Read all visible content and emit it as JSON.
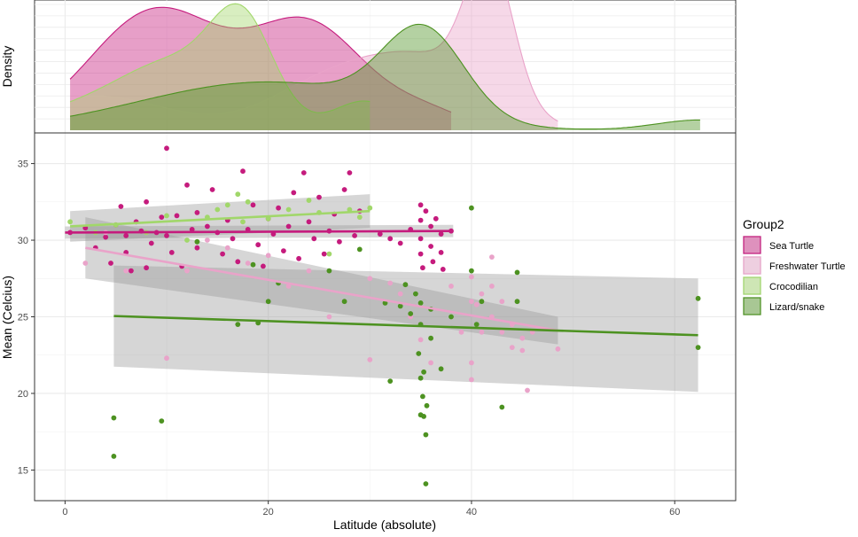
{
  "chart_data": {
    "type": "scatter",
    "xlabel": "Latitude (absolute)",
    "ylabel": "Mean (Celcius)",
    "density_ylabel": "Density",
    "xlim": [
      -3,
      66
    ],
    "ylim": [
      13,
      37
    ],
    "x_ticks": [
      0,
      20,
      40,
      60
    ],
    "y_ticks": [
      15,
      20,
      25,
      30,
      35
    ],
    "density_max": 1.1,
    "grid": true,
    "legend_position": "right",
    "legend": {
      "title": "Group2",
      "entries": [
        "Sea Turtle",
        "Freshwater Turtle",
        "Crocodilian",
        "Lizard/snake"
      ]
    },
    "colors": {
      "Sea Turtle": "#c51b7d",
      "Freshwater Turtle": "#e9a3c9",
      "Crocodilian": "#a1d76a",
      "Lizard/snake": "#4d9221"
    },
    "series": [
      {
        "name": "Sea Turtle",
        "points": [
          [
            0.5,
            30.5
          ],
          [
            2,
            30.8
          ],
          [
            3,
            29.5
          ],
          [
            4,
            30.2
          ],
          [
            4.5,
            28.5
          ],
          [
            5,
            31
          ],
          [
            5.5,
            32.2
          ],
          [
            6,
            30.3
          ],
          [
            6,
            29.2
          ],
          [
            6.5,
            28
          ],
          [
            7,
            31.2
          ],
          [
            7.5,
            30.6
          ],
          [
            8,
            32.5
          ],
          [
            8,
            28.2
          ],
          [
            8.5,
            29.8
          ],
          [
            9,
            30.5
          ],
          [
            9.5,
            31.5
          ],
          [
            10,
            36
          ],
          [
            10,
            30.3
          ],
          [
            10.5,
            29.2
          ],
          [
            11,
            31.6
          ],
          [
            11.5,
            28.3
          ],
          [
            12,
            33.6
          ],
          [
            12.5,
            30.7
          ],
          [
            13,
            31.8
          ],
          [
            13,
            29.5
          ],
          [
            14,
            30.9
          ],
          [
            14.5,
            33.3
          ],
          [
            15,
            30.5
          ],
          [
            15.5,
            29.1
          ],
          [
            16,
            31.3
          ],
          [
            16.5,
            30.1
          ],
          [
            17,
            28.6
          ],
          [
            17.5,
            34.5
          ],
          [
            18,
            30.7
          ],
          [
            18.5,
            32.3
          ],
          [
            19,
            29.7
          ],
          [
            19.5,
            28.3
          ],
          [
            20,
            31.4
          ],
          [
            20.5,
            30.4
          ],
          [
            21,
            32.1
          ],
          [
            21.5,
            29.3
          ],
          [
            22,
            30.9
          ],
          [
            22.5,
            33.1
          ],
          [
            23,
            28.8
          ],
          [
            23.5,
            34.4
          ],
          [
            24,
            31.2
          ],
          [
            24.5,
            30.1
          ],
          [
            25,
            32.8
          ],
          [
            25.5,
            29.1
          ],
          [
            26,
            30.6
          ],
          [
            26.5,
            31.7
          ],
          [
            27,
            29.9
          ],
          [
            27.5,
            33.3
          ],
          [
            28,
            34.4
          ],
          [
            28.5,
            30.3
          ],
          [
            29,
            31.9
          ],
          [
            31,
            30.4
          ],
          [
            32,
            30.1
          ],
          [
            33,
            29.8
          ],
          [
            34,
            30.7
          ],
          [
            35,
            32.3
          ],
          [
            35,
            31.3
          ],
          [
            35,
            30.1
          ],
          [
            35,
            29.1
          ],
          [
            35.2,
            28.2
          ],
          [
            35.5,
            31.9
          ],
          [
            36,
            30.9
          ],
          [
            36,
            29.6
          ],
          [
            36.2,
            28.6
          ],
          [
            36.5,
            31.4
          ],
          [
            37,
            30.4
          ],
          [
            37,
            29.2
          ],
          [
            37.2,
            28.1
          ],
          [
            38,
            30.6
          ]
        ]
      },
      {
        "name": "Freshwater Turtle",
        "points": [
          [
            2,
            28.5
          ],
          [
            4,
            30.5
          ],
          [
            6,
            28
          ],
          [
            8,
            30.5
          ],
          [
            10,
            22.3
          ],
          [
            12,
            28
          ],
          [
            14,
            30
          ],
          [
            16,
            29.5
          ],
          [
            18,
            28.5
          ],
          [
            20,
            29
          ],
          [
            22,
            27
          ],
          [
            24,
            28
          ],
          [
            26,
            25
          ],
          [
            30,
            22.2
          ],
          [
            30,
            27.5
          ],
          [
            32,
            27.2
          ],
          [
            33,
            26.5
          ],
          [
            34,
            25
          ],
          [
            35,
            23.5
          ],
          [
            35,
            24.5
          ],
          [
            36,
            22
          ],
          [
            38,
            27
          ],
          [
            39,
            24
          ],
          [
            40,
            22
          ],
          [
            40,
            26
          ],
          [
            40,
            27.6
          ],
          [
            40,
            20.9
          ],
          [
            40.5,
            25.8
          ],
          [
            41,
            26.5
          ],
          [
            41,
            24
          ],
          [
            42,
            28.9
          ],
          [
            42,
            27
          ],
          [
            42,
            25
          ],
          [
            43,
            24
          ],
          [
            43,
            26
          ],
          [
            44,
            24.5
          ],
          [
            44,
            23
          ],
          [
            45,
            23.6
          ],
          [
            45,
            22.8
          ],
          [
            45.5,
            20.2
          ],
          [
            46,
            24
          ],
          [
            48.5,
            22.9
          ]
        ]
      },
      {
        "name": "Crocodilian",
        "points": [
          [
            0.5,
            31.2
          ],
          [
            3,
            30.5
          ],
          [
            5,
            31
          ],
          [
            8,
            30.5
          ],
          [
            10,
            31.6
          ],
          [
            12,
            30
          ],
          [
            13,
            29.9
          ],
          [
            14,
            31.5
          ],
          [
            15,
            32
          ],
          [
            16,
            32.3
          ],
          [
            17,
            33
          ],
          [
            17.5,
            31.2
          ],
          [
            18,
            32.5
          ],
          [
            20,
            31.4
          ],
          [
            22,
            32
          ],
          [
            24,
            32.6
          ],
          [
            25,
            31.8
          ],
          [
            26,
            29.1
          ],
          [
            28,
            32
          ],
          [
            29,
            31.5
          ],
          [
            30,
            32.1
          ]
        ]
      },
      {
        "name": "Lizard/snake",
        "points": [
          [
            4.8,
            18.4
          ],
          [
            4.8,
            15.9
          ],
          [
            9.5,
            18.2
          ],
          [
            13,
            29.9
          ],
          [
            17,
            24.5
          ],
          [
            18.5,
            28.4
          ],
          [
            19,
            24.6
          ],
          [
            20,
            26
          ],
          [
            21,
            27.2
          ],
          [
            26,
            28
          ],
          [
            27.5,
            26
          ],
          [
            29,
            29.4
          ],
          [
            31.5,
            25.9
          ],
          [
            32,
            20.8
          ],
          [
            33,
            25.7
          ],
          [
            33.5,
            27.1
          ],
          [
            34,
            25.2
          ],
          [
            34.5,
            26.5
          ],
          [
            34.8,
            22.6
          ],
          [
            35,
            21
          ],
          [
            35,
            25.9
          ],
          [
            35,
            24.5
          ],
          [
            35,
            18.6
          ],
          [
            35.2,
            19.8
          ],
          [
            35.3,
            21.4
          ],
          [
            35.3,
            18.5
          ],
          [
            35.5,
            17.3
          ],
          [
            35.5,
            14.1
          ],
          [
            35.6,
            19.2
          ],
          [
            36,
            23.6
          ],
          [
            36,
            25.5
          ],
          [
            37,
            21.6
          ],
          [
            38,
            25
          ],
          [
            40,
            32.1
          ],
          [
            40,
            28
          ],
          [
            40.5,
            24.5
          ],
          [
            41,
            26
          ],
          [
            43,
            19.1
          ],
          [
            44.5,
            27.9
          ],
          [
            44.5,
            26
          ],
          [
            62.3,
            26.2
          ],
          [
            62.3,
            23
          ]
        ]
      }
    ],
    "fits": [
      {
        "name": "Sea Turtle",
        "x": [
          0,
          38.2
        ],
        "y": [
          30.5,
          30.6
        ],
        "ci": [
          0.4,
          0.4
        ]
      },
      {
        "name": "Freshwater Turtle",
        "x": [
          2,
          48.5
        ],
        "y": [
          29.5,
          24.1
        ],
        "ci": [
          2.0,
          0.9
        ]
      },
      {
        "name": "Crocodilian",
        "x": [
          0.5,
          30
        ],
        "y": [
          30.9,
          31.9
        ],
        "ci": [
          1.0,
          1.1
        ]
      },
      {
        "name": "Lizard/snake",
        "x": [
          4.8,
          62.3
        ],
        "y": [
          25.05,
          23.8
        ],
        "ci": [
          3.3,
          3.7
        ]
      }
    ],
    "densities": [
      {
        "name": "Sea Turtle",
        "components": [
          [
            1.05,
            9,
            6.5
          ],
          [
            0.9,
            24,
            5.5
          ],
          [
            0.15,
            35.5,
            4
          ]
        ],
        "range": [
          0.5,
          38.2
        ]
      },
      {
        "name": "Freshwater Turtle",
        "components": [
          [
            0.3,
            3,
            7
          ],
          [
            0.4,
            26,
            6
          ],
          [
            0.55,
            36,
            6
          ],
          [
            1.2,
            41.8,
            2.3
          ]
        ],
        "range": [
          0.5,
          48.5
        ]
      },
      {
        "name": "Crocodilian",
        "components": [
          [
            0.12,
            0,
            5
          ],
          [
            0.6,
            11,
            6
          ],
          [
            0.75,
            17.5,
            3
          ],
          [
            0.25,
            29.5,
            3
          ]
        ],
        "range": [
          0.5,
          30
        ]
      },
      {
        "name": "Lizard/snake",
        "components": [
          [
            0.2,
            12,
            10
          ],
          [
            0.3,
            24,
            10
          ],
          [
            0.75,
            35.3,
            4
          ],
          [
            0.09,
            62.5,
            4.3
          ]
        ],
        "range": [
          0.5,
          62.5
        ]
      }
    ]
  }
}
